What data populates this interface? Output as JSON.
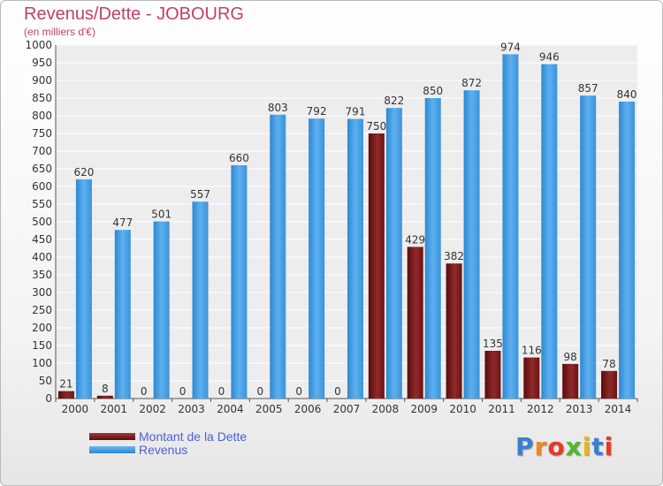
{
  "chart_data": {
    "type": "bar",
    "title": "Revenus/Dette - JOBOURG",
    "subtitle": "(en milliers d'€)",
    "categories": [
      "2000",
      "2001",
      "2002",
      "2003",
      "2004",
      "2005",
      "2006",
      "2007",
      "2008",
      "2009",
      "2010",
      "2011",
      "2012",
      "2013",
      "2014"
    ],
    "series": [
      {
        "name": "Montant de la Dette",
        "color": "#7a1616",
        "values": [
          21,
          8,
          0,
          0,
          0,
          0,
          0,
          0,
          750,
          429,
          382,
          135,
          116,
          98,
          78
        ]
      },
      {
        "name": "Revenus",
        "color": "#3f9be0",
        "values": [
          620,
          477,
          501,
          557,
          660,
          803,
          792,
          791,
          822,
          850,
          872,
          974,
          946,
          857,
          840
        ]
      }
    ],
    "ylim": [
      0,
      1000
    ],
    "yticks": [
      0,
      50,
      100,
      150,
      200,
      250,
      300,
      350,
      400,
      450,
      500,
      550,
      600,
      650,
      700,
      750,
      800,
      850,
      900,
      950,
      1000
    ],
    "grid": true,
    "legend_position": "bottom-left"
  },
  "logo": {
    "text": "Proxiti",
    "colors": [
      "#3a7fd0",
      "#f08a1c",
      "#e33a2a",
      "#55b630",
      "#e8b51d",
      "#3a7fd0",
      "#e33a2a"
    ]
  }
}
